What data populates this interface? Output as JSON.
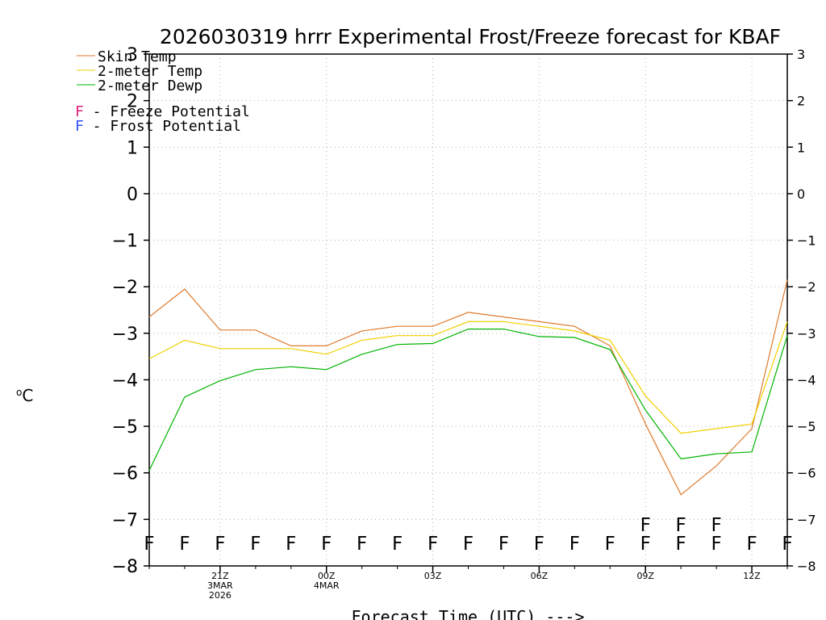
{
  "chart_data": {
    "type": "line",
    "title": "2026030319 hrrr Experimental Frost/Freeze forecast for KBAF",
    "xlabel": "Forecast Time (UTC) --->",
    "ylabel": "oC",
    "ylabel_base": "o",
    "ylabel_unit": "C",
    "ylim": [
      -8,
      3
    ],
    "yticks": [
      -8,
      -7,
      -6,
      -5,
      -4,
      -3,
      -2,
      -1,
      0,
      1,
      2,
      3
    ],
    "ytick_labels": [
      "−8",
      "−7",
      "−6",
      "−5",
      "−4",
      "−3",
      "−2",
      "−1",
      "0",
      "1",
      "2",
      "3"
    ],
    "grid": true,
    "x_hours": [
      0,
      1,
      2,
      3,
      4,
      5,
      6,
      7,
      8,
      9,
      10,
      11,
      12,
      13,
      14,
      15,
      16,
      17,
      18
    ],
    "xticks": [
      {
        "hour": 2,
        "lines": [
          "21Z",
          "3MAR",
          "2026"
        ]
      },
      {
        "hour": 5,
        "lines": [
          "00Z",
          "4MAR"
        ]
      },
      {
        "hour": 8,
        "lines": [
          "03Z"
        ]
      },
      {
        "hour": 11,
        "lines": [
          "06Z"
        ]
      },
      {
        "hour": 14,
        "lines": [
          "09Z"
        ]
      },
      {
        "hour": 17,
        "lines": [
          "12Z"
        ]
      }
    ],
    "series": [
      {
        "name": "Skin Temp",
        "color": "#e07a2b",
        "values": [
          -2.65,
          -2.05,
          -2.93,
          -2.93,
          -3.27,
          -3.27,
          -2.95,
          -2.85,
          -2.85,
          -2.55,
          -2.65,
          -2.75,
          -2.85,
          -3.27,
          -4.95,
          -6.47,
          -5.85,
          -5.05,
          -1.85
        ]
      },
      {
        "name": "2-meter Temp",
        "color": "#f0d000",
        "values": [
          -3.55,
          -3.15,
          -3.33,
          -3.33,
          -3.33,
          -3.45,
          -3.15,
          -3.05,
          -3.05,
          -2.75,
          -2.75,
          -2.85,
          -2.95,
          -3.15,
          -4.35,
          -5.15,
          -5.05,
          -4.95,
          -2.75
        ]
      },
      {
        "name": "2-meter Dewp",
        "color": "#00b400",
        "values": [
          -5.95,
          -4.37,
          -4.02,
          -3.78,
          -3.72,
          -3.78,
          -3.45,
          -3.24,
          -3.22,
          -2.91,
          -2.91,
          -3.07,
          -3.09,
          -3.35,
          -4.65,
          -5.7,
          -5.59,
          -5.55,
          -3.05
        ]
      }
    ],
    "legend": [
      {
        "name": "Skin Temp",
        "color": "#e07a2b"
      },
      {
        "name": "2-meter Temp",
        "color": "#f0d000"
      },
      {
        "name": "2-meter Dewp",
        "color": "#00b400"
      }
    ],
    "potential_legend": [
      {
        "marker": "F",
        "text": " - Freeze Potential",
        "color": "#e0207a"
      },
      {
        "marker": "F",
        "text": " - Frost Potential",
        "color": "#3050ff"
      }
    ],
    "freeze_flags": {
      "marker": "F",
      "color": "#e0207a",
      "y": -7.5,
      "hours": [
        0,
        1,
        2,
        3,
        4,
        5,
        6,
        7,
        8,
        9,
        10,
        11,
        12,
        13,
        14,
        15,
        16,
        17,
        18
      ]
    },
    "frost_flags": {
      "marker": "F",
      "color": "#3050ff",
      "y": -7.1,
      "hours": [
        14,
        15,
        16
      ]
    }
  }
}
